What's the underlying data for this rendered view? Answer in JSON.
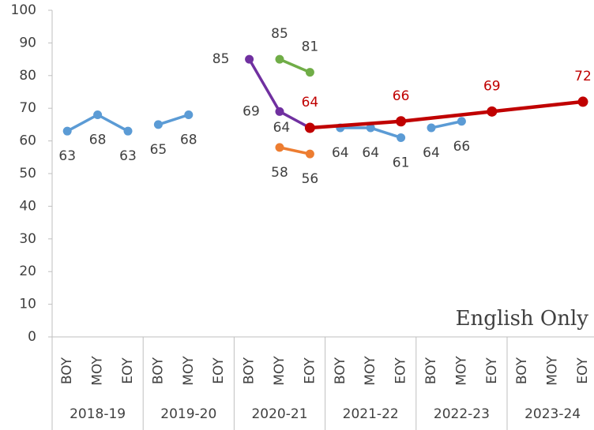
{
  "chart_data": {
    "type": "line",
    "categories": [
      "BOY",
      "MOY",
      "EOY",
      "BOY",
      "MOY",
      "EOY",
      "BOY",
      "MOY",
      "EOY",
      "BOY",
      "MOY",
      "EOY",
      "BOY",
      "MOY",
      "EOY",
      "BOY",
      "MOY",
      "EOY"
    ],
    "groups": [
      "2018-19",
      "2019-20",
      "2020-21",
      "2021-22",
      "2022-23",
      "2023-24"
    ],
    "ylim": [
      0,
      100
    ],
    "yticks": [
      0,
      10,
      20,
      30,
      40,
      50,
      60,
      70,
      80,
      90,
      100
    ],
    "annotation": "English Only",
    "series": [
      {
        "color": "#5b9bd5",
        "values": [
          63,
          68,
          63,
          null,
          null,
          null,
          null,
          null,
          null,
          null,
          null,
          null,
          null,
          null,
          null,
          null,
          null,
          null
        ]
      },
      {
        "color": "#5b9bd5",
        "values": [
          null,
          null,
          null,
          65,
          68,
          null,
          null,
          null,
          null,
          null,
          null,
          null,
          null,
          null,
          null,
          null,
          null,
          null
        ]
      },
      {
        "color": "#5b9bd5",
        "values": [
          null,
          null,
          null,
          null,
          null,
          null,
          null,
          null,
          null,
          64,
          64,
          61,
          null,
          null,
          null,
          null,
          null,
          null
        ]
      },
      {
        "color": "#5b9bd5",
        "values": [
          null,
          null,
          null,
          null,
          null,
          null,
          null,
          null,
          null,
          null,
          null,
          null,
          64,
          66,
          null,
          null,
          null,
          null
        ]
      },
      {
        "color": "#7030a0",
        "values": [
          null,
          null,
          null,
          null,
          null,
          null,
          85,
          69,
          64,
          null,
          null,
          null,
          null,
          null,
          null,
          null,
          null,
          null
        ]
      },
      {
        "color": "#70ad47",
        "values": [
          null,
          null,
          null,
          null,
          null,
          null,
          null,
          85,
          81,
          null,
          null,
          null,
          null,
          null,
          null,
          null,
          null,
          null
        ]
      },
      {
        "color": "#ed7d31",
        "values": [
          null,
          null,
          null,
          null,
          null,
          null,
          null,
          58,
          56,
          null,
          null,
          null,
          null,
          null,
          null,
          null,
          null,
          null
        ]
      },
      {
        "color": "#c00000",
        "label_color": "#c00000",
        "span_gaps": true,
        "values": [
          null,
          null,
          null,
          null,
          null,
          null,
          null,
          null,
          64,
          null,
          null,
          66,
          null,
          null,
          69,
          null,
          null,
          72
        ]
      }
    ]
  }
}
